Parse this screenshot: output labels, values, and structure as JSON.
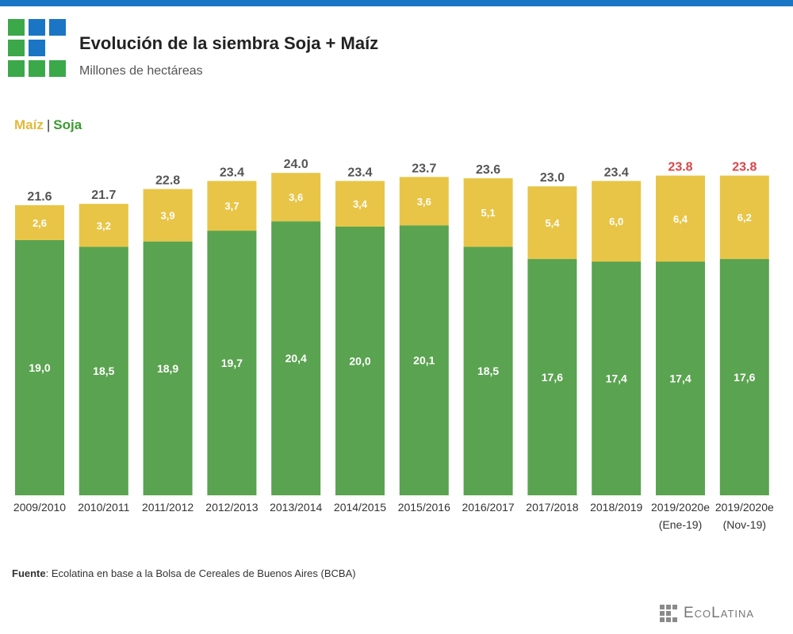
{
  "header": {
    "title": "Evolución de la siembra Soja + Maíz",
    "subtitle": "Millones de hectáreas"
  },
  "legend": {
    "maiz_label": "Maíz",
    "separator": "|",
    "soja_label": "Soja"
  },
  "colors": {
    "topbar": "#1a75c4",
    "soja": "#5aa350",
    "maiz": "#e8c547",
    "maiz_legend": "#e2b93b",
    "soja_legend": "#3a9a2f",
    "total_default": "#555555",
    "total_highlight": "#d9444a",
    "logo_green": "#3ba84a",
    "logo_blue": "#1a75c4"
  },
  "chart_data": {
    "type": "bar",
    "stacked": true,
    "title": "Evolución de la siembra Soja + Maíz",
    "ylabel": "Millones de hectáreas",
    "categories": [
      [
        "2009/2010"
      ],
      [
        "2010/2011"
      ],
      [
        "2011/2012"
      ],
      [
        "2012/2013"
      ],
      [
        "2013/2014"
      ],
      [
        "2014/2015"
      ],
      [
        "2015/2016"
      ],
      [
        "2016/2017"
      ],
      [
        "2017/2018"
      ],
      [
        "2018/2019"
      ],
      [
        "2019/2020e",
        "(Ene-19)"
      ],
      [
        "2019/2020e",
        "(Nov-19)"
      ]
    ],
    "series": [
      {
        "name": "Soja",
        "values": [
          19.0,
          18.5,
          18.9,
          19.7,
          20.4,
          20.0,
          20.1,
          18.5,
          17.6,
          17.4,
          17.4,
          17.6
        ],
        "labels": [
          "19,0",
          "18,5",
          "18,9",
          "19,7",
          "20,4",
          "20,0",
          "20,1",
          "18,5",
          "17,6",
          "17,4",
          "17,4",
          "17,6"
        ]
      },
      {
        "name": "Maíz",
        "values": [
          2.6,
          3.2,
          3.9,
          3.7,
          3.6,
          3.4,
          3.6,
          5.1,
          5.4,
          6.0,
          6.4,
          6.2
        ],
        "labels": [
          "2,6",
          "3,2",
          "3,9",
          "3,7",
          "3,6",
          "3,4",
          "3,6",
          "5,1",
          "5,4",
          "6,0",
          "6,4",
          "6,2"
        ]
      }
    ],
    "totals": [
      "21.6",
      "21.7",
      "22.8",
      "23.4",
      "24.0",
      "23.4",
      "23.7",
      "23.6",
      "23.0",
      "23.4",
      "23.8",
      "23.8"
    ],
    "highlighted_totals": [
      10,
      11
    ],
    "grid": false
  },
  "footer": {
    "source_label": "Fuente",
    "source_text": ": Ecolatina en base a la Bolsa de Cereales de Buenos Aires (BCBA)",
    "brand": "EcoLatina"
  }
}
